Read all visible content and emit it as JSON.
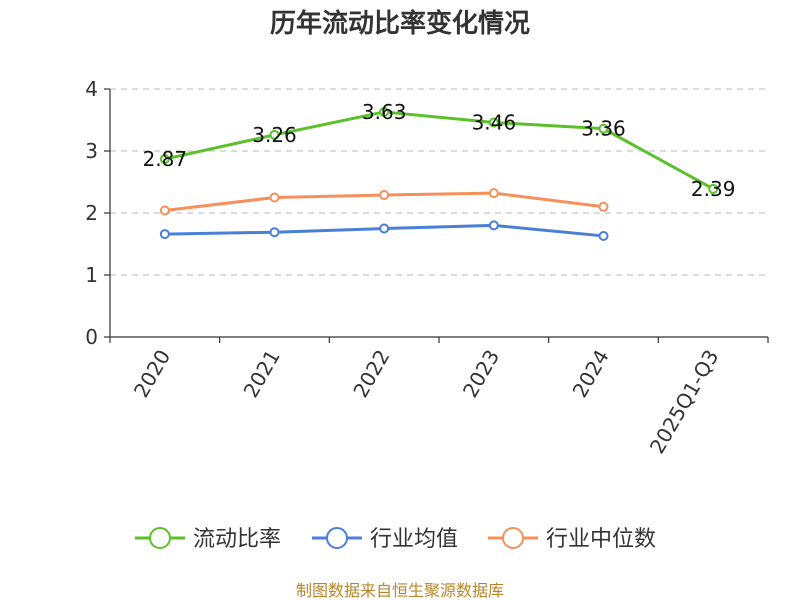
{
  "chart_data": {
    "type": "line",
    "title": "历年流动比率变化情况",
    "categories": [
      "2020",
      "2021",
      "2022",
      "2023",
      "2024",
      "2025Q1-Q3"
    ],
    "ylim": [
      0,
      4
    ],
    "yticks": [
      "0",
      "1",
      "2",
      "3",
      "4"
    ],
    "grid": true,
    "legend_position": "bottom",
    "series": [
      {
        "name": "流动比率",
        "color": "#5cc02a",
        "values": [
          2.87,
          3.26,
          3.63,
          3.46,
          3.36,
          2.39
        ],
        "labels": [
          "2.87",
          "3.26",
          "3.63",
          "3.46",
          "3.36",
          "2.39"
        ]
      },
      {
        "name": "行业均值",
        "color": "#4a7fd8",
        "values": [
          1.66,
          1.69,
          1.75,
          1.8,
          1.63,
          null
        ]
      },
      {
        "name": "行业中位数",
        "color": "#f5905a",
        "values": [
          2.04,
          2.25,
          2.29,
          2.32,
          2.1,
          null
        ]
      }
    ],
    "source": "制图数据来自恒生聚源数据库"
  }
}
